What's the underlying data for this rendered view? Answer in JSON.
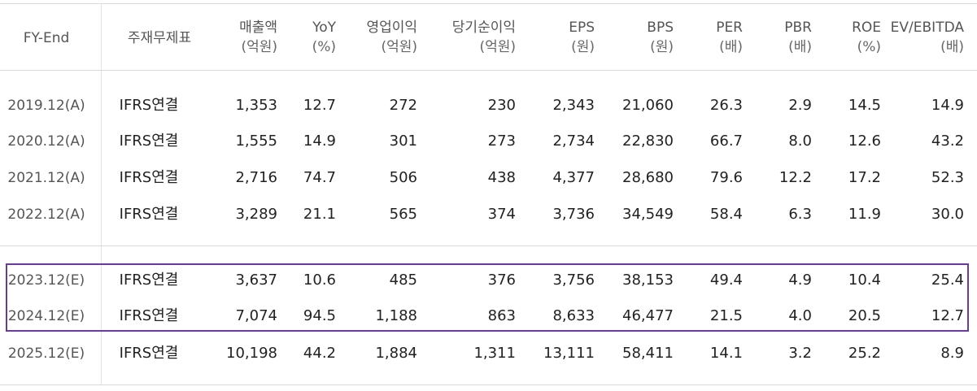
{
  "table": {
    "headers": [
      {
        "label": "FY-End",
        "unit": ""
      },
      {
        "label": "주재무제표",
        "unit": ""
      },
      {
        "label": "매출액",
        "unit": "(억원)"
      },
      {
        "label": "YoY",
        "unit": "(%)"
      },
      {
        "label": "영업이익",
        "unit": "(억원)"
      },
      {
        "label": "당기순이익",
        "unit": "(억원)"
      },
      {
        "label": "EPS",
        "unit": "(원)"
      },
      {
        "label": "BPS",
        "unit": "(원)"
      },
      {
        "label": "PER",
        "unit": "(배)"
      },
      {
        "label": "PBR",
        "unit": "(배)"
      },
      {
        "label": "ROE",
        "unit": "(%)"
      },
      {
        "label": "EV/EBITDA",
        "unit": "(배)"
      }
    ],
    "rows": [
      [
        "2019.12(A)",
        "IFRS연결",
        "1,353",
        "12.7",
        "272",
        "230",
        "2,343",
        "21,060",
        "26.3",
        "2.9",
        "14.5",
        "14.9"
      ],
      [
        "2020.12(A)",
        "IFRS연결",
        "1,555",
        "14.9",
        "301",
        "273",
        "2,734",
        "22,830",
        "66.7",
        "8.0",
        "12.6",
        "43.2"
      ],
      [
        "2021.12(A)",
        "IFRS연결",
        "2,716",
        "74.7",
        "506",
        "438",
        "4,377",
        "28,680",
        "79.6",
        "12.2",
        "17.2",
        "52.3"
      ],
      [
        "2022.12(A)",
        "IFRS연결",
        "3,289",
        "21.1",
        "565",
        "374",
        "3,736",
        "34,549",
        "58.4",
        "6.3",
        "11.9",
        "30.0"
      ],
      [
        "2023.12(E)",
        "IFRS연결",
        "3,637",
        "10.6",
        "485",
        "376",
        "3,756",
        "38,153",
        "49.4",
        "4.9",
        "10.4",
        "25.4"
      ],
      [
        "2024.12(E)",
        "IFRS연결",
        "7,074",
        "94.5",
        "1,188",
        "863",
        "8,633",
        "46,477",
        "21.5",
        "4.0",
        "20.5",
        "12.7"
      ],
      [
        "2025.12(E)",
        "IFRS연결",
        "10,198",
        "44.2",
        "1,884",
        "1,311",
        "13,111",
        "58,411",
        "14.1",
        "3.2",
        "25.2",
        "8.9"
      ]
    ],
    "highlight_color": "#6a3aa3"
  }
}
